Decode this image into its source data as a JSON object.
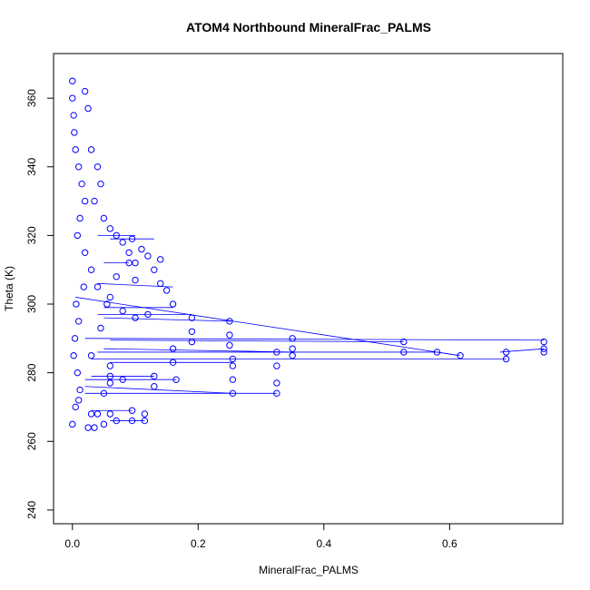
{
  "chart_data": {
    "type": "scatter",
    "title": "ATOM4 Northbound MineralFrac_PALMS",
    "xlabel": "MineralFrac_PALMS",
    "ylabel": "Theta (K)",
    "xlim": [
      -0.03,
      0.78
    ],
    "ylim": [
      236,
      373
    ],
    "xticks": [
      0.0,
      0.2,
      0.4,
      0.6
    ],
    "xtick_labels": [
      "0.0",
      "0.2",
      "0.4",
      "0.6"
    ],
    "yticks": [
      240,
      260,
      280,
      300,
      320,
      340,
      360
    ],
    "ytick_labels": [
      "240",
      "260",
      "280",
      "300",
      "320",
      "340",
      "360"
    ],
    "grid": false,
    "legend": "none",
    "marker": "open-circle",
    "connect_lines": true,
    "series": [
      {
        "color": "#0000ff",
        "points": [
          [
            0.0,
            365
          ],
          [
            0.0,
            360
          ],
          [
            0.002,
            355
          ],
          [
            0.003,
            350
          ],
          [
            0.005,
            345
          ],
          [
            0.01,
            340
          ],
          [
            0.015,
            335
          ],
          [
            0.02,
            330
          ],
          [
            0.012,
            325
          ],
          [
            0.008,
            320
          ],
          [
            0.02,
            315
          ],
          [
            0.03,
            310
          ],
          [
            0.018,
            305
          ],
          [
            0.006,
            300
          ],
          [
            0.01,
            295
          ],
          [
            0.004,
            290
          ],
          [
            0.002,
            285
          ],
          [
            0.008,
            280
          ],
          [
            0.012,
            275
          ],
          [
            0.005,
            270
          ],
          [
            0.0,
            265
          ],
          [
            0.02,
            362
          ],
          [
            0.025,
            357
          ],
          [
            0.03,
            345
          ],
          [
            0.04,
            340
          ],
          [
            0.045,
            335
          ],
          [
            0.035,
            330
          ],
          [
            0.05,
            325
          ],
          [
            0.06,
            322
          ],
          [
            0.07,
            320
          ],
          [
            0.08,
            318
          ],
          [
            0.09,
            315
          ],
          [
            0.095,
            319
          ],
          [
            0.1,
            312
          ],
          [
            0.11,
            316
          ],
          [
            0.12,
            314
          ],
          [
            0.13,
            310
          ],
          [
            0.14,
            306
          ],
          [
            0.15,
            304
          ],
          [
            0.16,
            300
          ],
          [
            0.12,
            297
          ],
          [
            0.1,
            296
          ],
          [
            0.08,
            298
          ],
          [
            0.06,
            302
          ],
          [
            0.04,
            305
          ],
          [
            0.19,
            296
          ],
          [
            0.19,
            292
          ],
          [
            0.19,
            289
          ],
          [
            0.25,
            295
          ],
          [
            0.25,
            291
          ],
          [
            0.25,
            288
          ],
          [
            0.35,
            290
          ],
          [
            0.35,
            287
          ],
          [
            0.35,
            285
          ],
          [
            0.527,
            289
          ],
          [
            0.527,
            286
          ],
          [
            0.58,
            286
          ],
          [
            0.617,
            285
          ],
          [
            0.75,
            289
          ],
          [
            0.75,
            287
          ],
          [
            0.75,
            286
          ],
          [
            0.69,
            286
          ],
          [
            0.69,
            284
          ],
          [
            0.255,
            284
          ],
          [
            0.255,
            282
          ],
          [
            0.255,
            278
          ],
          [
            0.255,
            274
          ],
          [
            0.325,
            286
          ],
          [
            0.325,
            282
          ],
          [
            0.325,
            277
          ],
          [
            0.325,
            274
          ],
          [
            0.16,
            287
          ],
          [
            0.16,
            283
          ],
          [
            0.13,
            279
          ],
          [
            0.13,
            276
          ],
          [
            0.165,
            278
          ],
          [
            0.06,
            282
          ],
          [
            0.06,
            279
          ],
          [
            0.06,
            277
          ],
          [
            0.04,
            268
          ],
          [
            0.03,
            268
          ],
          [
            0.05,
            265
          ],
          [
            0.06,
            268
          ],
          [
            0.095,
            269
          ],
          [
            0.095,
            266
          ],
          [
            0.115,
            268
          ],
          [
            0.115,
            266
          ],
          [
            0.035,
            264
          ],
          [
            0.025,
            264
          ],
          [
            0.01,
            272
          ],
          [
            0.07,
            266
          ],
          [
            0.08,
            278
          ],
          [
            0.05,
            274
          ],
          [
            0.09,
            312
          ],
          [
            0.14,
            313
          ],
          [
            0.1,
            307
          ],
          [
            0.07,
            308
          ],
          [
            0.055,
            300
          ],
          [
            0.045,
            293
          ],
          [
            0.03,
            285
          ]
        ],
        "segments": [
          [
            [
              0.005,
              302
            ],
            [
              0.616,
              285
            ]
          ],
          [
            [
              0.02,
              290
            ],
            [
              0.75,
              289.5
            ]
          ],
          [
            [
              0.03,
              284
            ],
            [
              0.69,
              284
            ]
          ],
          [
            [
              0.04,
              286
            ],
            [
              0.58,
              286
            ]
          ],
          [
            [
              0.06,
              289.5
            ],
            [
              0.527,
              289
            ]
          ],
          [
            [
              0.05,
              296
            ],
            [
              0.255,
              295
            ]
          ],
          [
            [
              0.04,
              297
            ],
            [
              0.19,
              297
            ]
          ],
          [
            [
              0.05,
              287
            ],
            [
              0.35,
              286
            ]
          ],
          [
            [
              0.06,
              283
            ],
            [
              0.255,
              283
            ]
          ],
          [
            [
              0.05,
              299
            ],
            [
              0.16,
              299
            ]
          ],
          [
            [
              0.04,
              306
            ],
            [
              0.16,
              305
            ]
          ],
          [
            [
              0.05,
              312
            ],
            [
              0.09,
              312
            ]
          ],
          [
            [
              0.04,
              320
            ],
            [
              0.1,
              320
            ]
          ],
          [
            [
              0.06,
              319
            ],
            [
              0.13,
              319
            ]
          ],
          [
            [
              0.02,
              278
            ],
            [
              0.165,
              278
            ]
          ],
          [
            [
              0.03,
              279
            ],
            [
              0.13,
              279
            ]
          ],
          [
            [
              0.03,
              269
            ],
            [
              0.095,
              269
            ]
          ],
          [
            [
              0.06,
              266
            ],
            [
              0.115,
              266
            ]
          ],
          [
            [
              0.02,
              274
            ],
            [
              0.325,
              274
            ]
          ],
          [
            [
              0.02,
              276
            ],
            [
              0.255,
              274
            ]
          ],
          [
            [
              0.68,
              286
            ],
            [
              0.75,
              287
            ]
          ],
          [
            [
              0.616,
              285
            ],
            [
              0.58,
              286
            ]
          ]
        ]
      }
    ]
  }
}
